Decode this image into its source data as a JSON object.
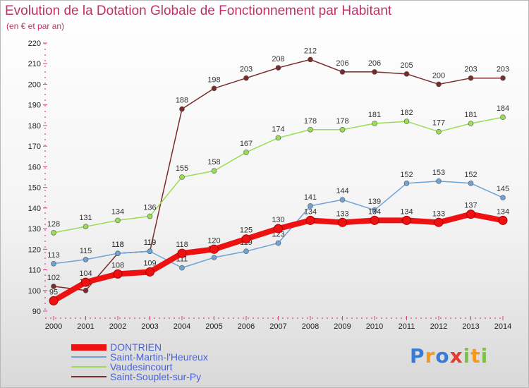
{
  "chart_data": {
    "type": "line",
    "title": "Evolution de la Dotation Globale de Fonctionnement par Habitant",
    "subtitle": "(en € et par an)",
    "xlabel": "",
    "ylabel": "",
    "ylim": [
      90,
      220
    ],
    "grid": false,
    "legend_position": "bottom-left",
    "categories": [
      "2000",
      "2001",
      "2002",
      "2003",
      "2004",
      "2005",
      "2006",
      "2007",
      "2008",
      "2009",
      "2010",
      "2011",
      "2012",
      "2013",
      "2014"
    ],
    "y_ticks": [
      90,
      100,
      110,
      120,
      130,
      140,
      150,
      160,
      170,
      180,
      190,
      200,
      210,
      220
    ],
    "series": [
      {
        "name": "DONTRIEN",
        "color": "#ee1111",
        "values": [
          95,
          104,
          108,
          109,
          118,
          120,
          125,
          130,
          134,
          133,
          134,
          134,
          133,
          137,
          134
        ]
      },
      {
        "name": "Saint-Martin-l'Heureux",
        "color": "#6fa3d6",
        "values": [
          113,
          115,
          118,
          119,
          111,
          116,
          119,
          123,
          141,
          144,
          139,
          152,
          153,
          152,
          145
        ]
      },
      {
        "name": "Vaudesincourt",
        "color": "#99dd55",
        "values": [
          128,
          131,
          134,
          136,
          155,
          158,
          167,
          174,
          178,
          178,
          181,
          182,
          177,
          181,
          184
        ]
      },
      {
        "name": "Saint-Souplet-sur-Py",
        "color": "#7a2b2b",
        "values": [
          102,
          100,
          118,
          119,
          188,
          198,
          203,
          208,
          212,
          206,
          206,
          205,
          200,
          203,
          203
        ]
      }
    ]
  },
  "logo": {
    "letters": [
      "P",
      "r",
      "o",
      "x",
      "i",
      "t",
      "i"
    ],
    "colors": [
      "#3a7bd5",
      "#f29a1e",
      "#3a7bd5",
      "#e63b2e",
      "#7cc243",
      "#f29a1e",
      "#7cc243"
    ]
  }
}
